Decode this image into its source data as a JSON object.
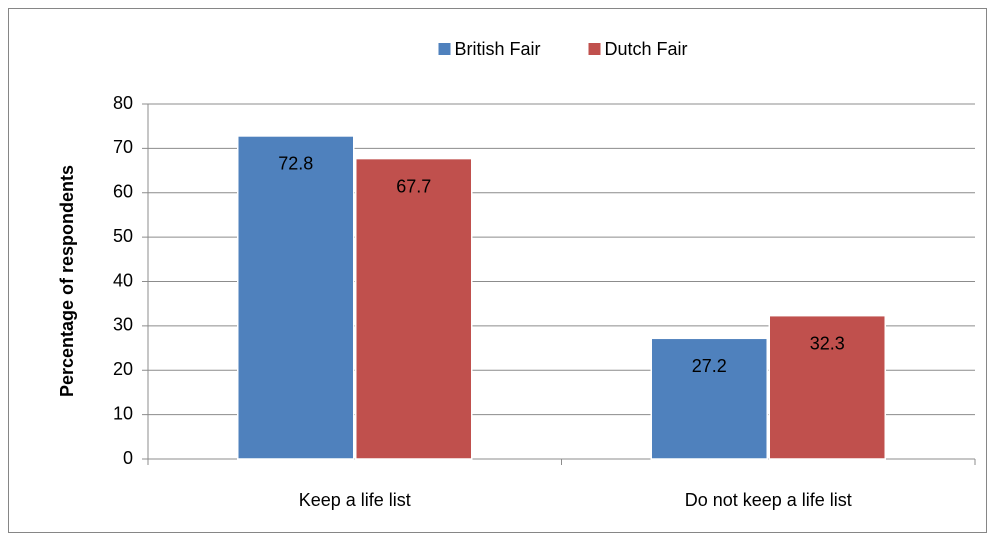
{
  "chart_data": {
    "type": "bar",
    "y_label": "Percentage of respondents",
    "categories": [
      "Keep a life list",
      "Do not keep a life list"
    ],
    "series": [
      {
        "name": "British Fair",
        "color": "#4f81bd",
        "values": [
          72.8,
          27.2
        ]
      },
      {
        "name": "Dutch Fair",
        "color": "#c0504d",
        "values": [
          67.7,
          32.3
        ]
      }
    ],
    "ylim": [
      0,
      80
    ],
    "yticks": [
      0,
      10,
      20,
      30,
      40,
      50,
      60,
      70,
      80
    ],
    "grid": true,
    "legend": "top"
  }
}
